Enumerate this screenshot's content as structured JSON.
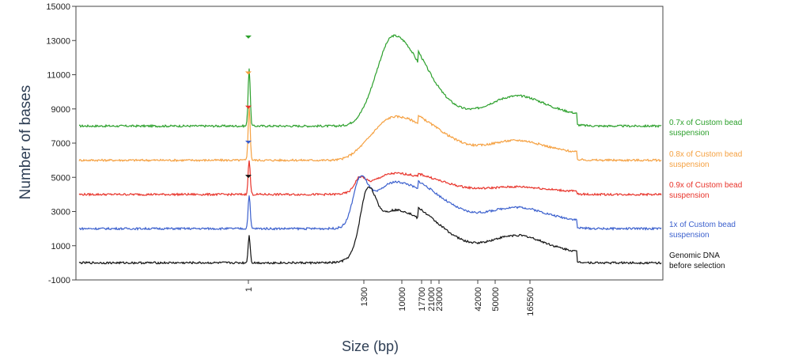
{
  "chart_data": {
    "type": "line",
    "xlabel": "Size (bp)",
    "ylabel": "Number of bases",
    "ylim": [
      -1000,
      15000
    ],
    "y_ticks": [
      "15000",
      "13000",
      "11000",
      "9000",
      "7000",
      "5000",
      "3000",
      "1000",
      "-1000"
    ],
    "x_tick_labels": [
      "1",
      "1300",
      "10000",
      "17700",
      "21000",
      "23000",
      "42000",
      "50000",
      "165500"
    ],
    "grid": false,
    "legend_placement": "right",
    "series": [
      {
        "name": "0.7x of Custom bead suspension",
        "color": "#2ca02c",
        "baseline": 8000,
        "peaks": [
          {
            "x": "1",
            "y": 11400
          },
          {
            "x": "10000",
            "y": 14000
          },
          {
            "x": "165500",
            "y": 10000
          }
        ]
      },
      {
        "name": "0.8x of Custom bead suspension",
        "color": "#f5a040",
        "baseline": 6000,
        "peaks": [
          {
            "x": "1",
            "y": 9100
          },
          {
            "x": "10000",
            "y": 8900
          },
          {
            "x": "165500",
            "y": 7300
          }
        ]
      },
      {
        "name": "0.9x of Custom bead suspension",
        "color": "#e8332a",
        "baseline": 4000,
        "peaks": [
          {
            "x": "1",
            "y": 6000
          },
          {
            "x": "1300",
            "y": 5500
          },
          {
            "x": "10000",
            "y": 5400
          },
          {
            "x": "165500",
            "y": 4500
          }
        ]
      },
      {
        "name": "1x of Custom bead suspension",
        "color": "#3a5fcd",
        "baseline": 2000,
        "peaks": [
          {
            "x": "1",
            "y": 4000
          },
          {
            "x": "1300",
            "y": 5500
          },
          {
            "x": "10000",
            "y": 5100
          },
          {
            "x": "165500",
            "y": 3400
          }
        ]
      },
      {
        "name": "Genomic DNA before selection",
        "color": "#111111",
        "baseline": 0,
        "peaks": [
          {
            "x": "1",
            "y": 1600
          },
          {
            "x": "1300",
            "y": 4200
          },
          {
            "x": "10000",
            "y": 3500
          },
          {
            "x": "165500",
            "y": 1800
          }
        ]
      }
    ]
  }
}
